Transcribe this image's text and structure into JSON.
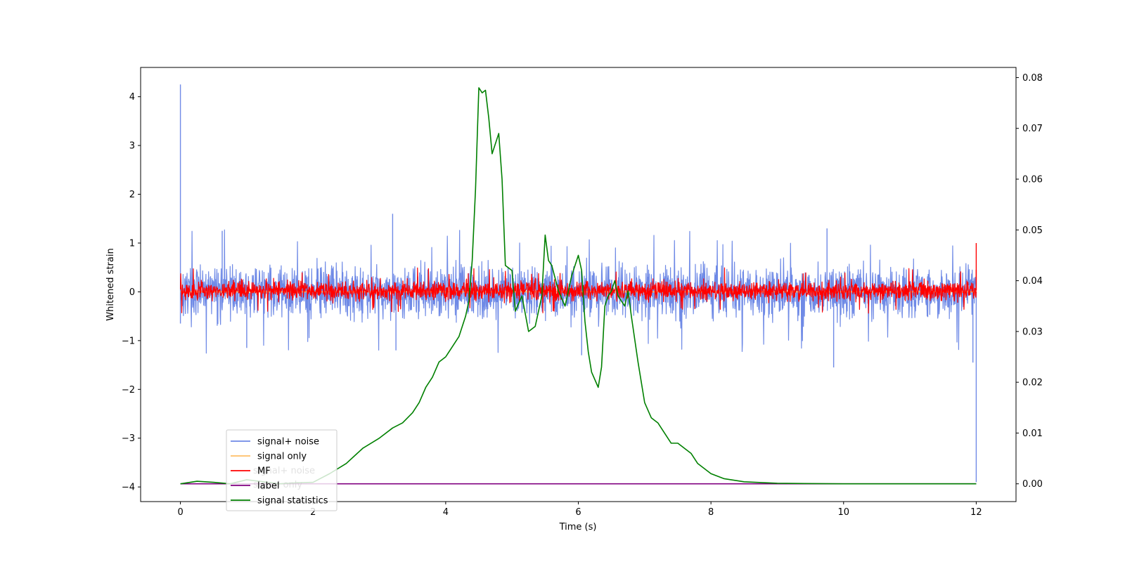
{
  "chart_data": {
    "type": "line",
    "xlabel": "Time (s)",
    "ylabel": "Whitened strain",
    "x_ticks": [
      0,
      2,
      4,
      6,
      8,
      10,
      12
    ],
    "x_tick_labels": [
      "0",
      "2",
      "4",
      "6",
      "8",
      "10",
      "12"
    ],
    "xlim": [
      -0.6,
      12.6
    ],
    "y_left": {
      "ticks": [
        -4,
        -3,
        -2,
        -1,
        0,
        1,
        2,
        3,
        4
      ],
      "tick_labels": [
        "−4",
        "−3",
        "−2",
        "−1",
        "0",
        "1",
        "2",
        "3",
        "4"
      ],
      "ylim": [
        -4.3,
        4.6
      ]
    },
    "y_right": {
      "ticks": [
        0.0,
        0.01,
        0.02,
        0.03,
        0.04,
        0.05,
        0.06,
        0.07,
        0.08
      ],
      "tick_labels": [
        "0.00",
        "0.01",
        "0.02",
        "0.03",
        "0.04",
        "0.05",
        "0.06",
        "0.07",
        "0.08"
      ],
      "ylim": [
        -0.0035,
        0.082
      ]
    },
    "grid": false,
    "legend_placement": "lower-left",
    "legend_entries": [
      {
        "label": "signal+ noise",
        "color": "#6f8ae6"
      },
      {
        "label": "signal only",
        "color": "#ffbf66"
      },
      {
        "label": "MF",
        "color": "#ff0000"
      },
      {
        "label": "label",
        "color": "#800080"
      },
      {
        "label": "signal statistics",
        "color": "#008000"
      }
    ],
    "ghost_legend_labels": [
      "signal+ noise",
      "signal only"
    ],
    "series": [
      {
        "name": "signal+ noise",
        "axis": "left",
        "color": "#6f8ae6",
        "style": "noise",
        "x_range": [
          0,
          12
        ],
        "typical_band": [
          -0.75,
          0.75
        ],
        "spikes": [
          {
            "x": 0.0,
            "y": 4.25
          },
          {
            "x": 0.0,
            "y": -0.65
          },
          {
            "x": 0.63,
            "y": 1.25
          },
          {
            "x": 1.0,
            "y": -1.15
          },
          {
            "x": 3.2,
            "y": 1.6
          },
          {
            "x": 3.25,
            "y": -1.2
          },
          {
            "x": 6.05,
            "y": -1.3
          },
          {
            "x": 9.75,
            "y": 1.3
          },
          {
            "x": 9.85,
            "y": -1.55
          },
          {
            "x": 11.95,
            "y": -1.45
          },
          {
            "x": 12.0,
            "y": -3.9
          }
        ]
      },
      {
        "name": "signal only",
        "axis": "left",
        "color": "#ffbf66",
        "style": "flat",
        "x": [
          0,
          12
        ],
        "y": [
          0,
          0
        ]
      },
      {
        "name": "MF",
        "axis": "left",
        "color": "#ff0000",
        "style": "noise",
        "x_range": [
          0,
          12
        ],
        "typical_band": [
          -0.25,
          0.3
        ],
        "spikes": [
          {
            "x": 12.0,
            "y": 1.0
          },
          {
            "x": 12.0,
            "y": 0.45
          }
        ]
      },
      {
        "name": "label",
        "axis": "right",
        "color": "#800080",
        "style": "flat",
        "x": [
          0,
          12
        ],
        "y": [
          0,
          0
        ]
      },
      {
        "name": "signal statistics",
        "axis": "right",
        "color": "#008000",
        "style": "line",
        "x": [
          0,
          0.25,
          0.5,
          0.75,
          1.0,
          1.25,
          1.5,
          1.75,
          2.0,
          2.25,
          2.5,
          2.75,
          3.0,
          3.2,
          3.35,
          3.5,
          3.6,
          3.7,
          3.8,
          3.9,
          4.0,
          4.1,
          4.2,
          4.3,
          4.35,
          4.4,
          4.45,
          4.5,
          4.55,
          4.6,
          4.65,
          4.7,
          4.8,
          4.85,
          4.9,
          5.0,
          5.05,
          5.15,
          5.25,
          5.35,
          5.45,
          5.5,
          5.55,
          5.6,
          5.7,
          5.8,
          5.9,
          6.0,
          6.05,
          6.1,
          6.15,
          6.2,
          6.3,
          6.35,
          6.4,
          6.45,
          6.5,
          6.55,
          6.6,
          6.7,
          6.75,
          6.8,
          6.9,
          7.0,
          7.1,
          7.2,
          7.3,
          7.4,
          7.5,
          7.6,
          7.7,
          7.8,
          8.0,
          8.2,
          8.5,
          9.0,
          10.0,
          12.0
        ],
        "y": [
          0.0,
          0.0005,
          0.0003,
          0.0,
          0.0008,
          0.0004,
          0.0,
          0.0002,
          0.0003,
          0.002,
          0.004,
          0.007,
          0.009,
          0.011,
          0.012,
          0.014,
          0.016,
          0.019,
          0.021,
          0.024,
          0.025,
          0.027,
          0.029,
          0.033,
          0.036,
          0.044,
          0.058,
          0.078,
          0.077,
          0.0775,
          0.072,
          0.065,
          0.069,
          0.06,
          0.043,
          0.042,
          0.034,
          0.037,
          0.03,
          0.031,
          0.037,
          0.049,
          0.044,
          0.043,
          0.038,
          0.035,
          0.041,
          0.045,
          0.042,
          0.032,
          0.026,
          0.022,
          0.019,
          0.023,
          0.035,
          0.037,
          0.038,
          0.04,
          0.037,
          0.035,
          0.038,
          0.033,
          0.024,
          0.016,
          0.013,
          0.012,
          0.01,
          0.008,
          0.008,
          0.007,
          0.006,
          0.004,
          0.002,
          0.001,
          0.0004,
          0.0001,
          0.0,
          0.0
        ]
      }
    ]
  }
}
